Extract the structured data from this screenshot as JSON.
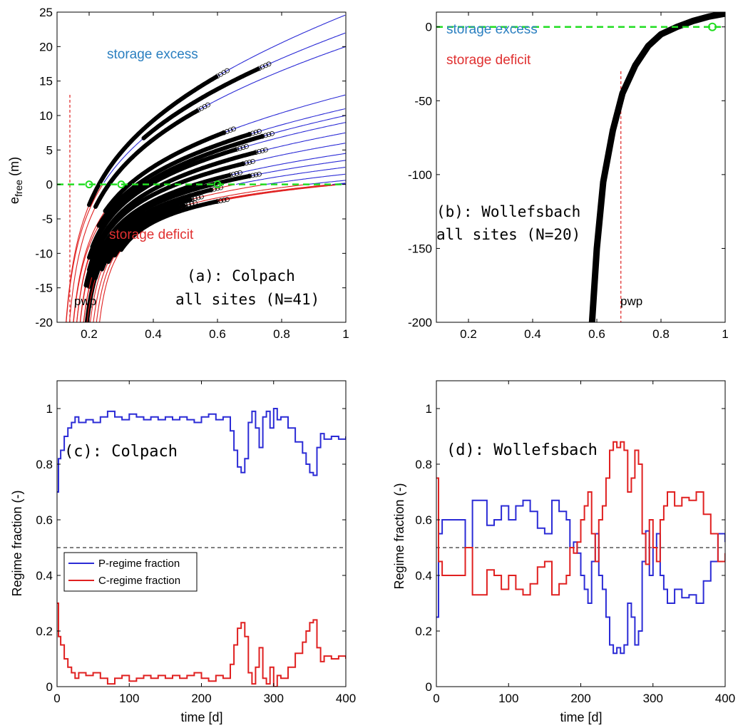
{
  "colors": {
    "blue": "#2b2bd6",
    "red": "#e02020",
    "green": "#22dd22",
    "black": "#000000",
    "label_blue": "#2a7fc0",
    "label_red": "#e03030"
  },
  "chart_data": [
    {
      "id": "a",
      "type": "line",
      "ylabel": "e_free (m)",
      "ylabel_main": "e",
      "ylabel_sub": "free",
      "ylabel_unit": "(m)",
      "xlim": [
        0.1,
        1.0
      ],
      "ylim": [
        -20,
        25
      ],
      "xticks": [
        0.2,
        0.4,
        0.6,
        0.8,
        1.0
      ],
      "xtick_labels": [
        "0.2",
        "0.4",
        "0.6",
        "0.8",
        "1"
      ],
      "yticks": [
        -20,
        -15,
        -10,
        -5,
        0,
        5,
        10,
        15,
        20,
        25
      ],
      "ytick_labels": [
        "-20",
        "-15",
        "-10",
        "-5",
        "0",
        "5",
        "10",
        "15",
        "20",
        "25"
      ],
      "annotations": {
        "storage_excess": "storage excess",
        "storage_deficit": "storage deficit",
        "panel_line1": "(a): Colpach",
        "panel_line2": "all sites (N=41)",
        "pwp": "pwp"
      },
      "pwp_x": 0.14,
      "zero_line_y": 0,
      "curves": [
        {
          "pwp": 0.1,
          "end": 24.6,
          "obs": [
            0.2,
            0.6
          ]
        },
        {
          "pwp": 0.1,
          "end": 22.0,
          "obs": [
            0.37,
            0.73
          ]
        },
        {
          "pwp": 0.11,
          "end": 20.0,
          "obs": [
            0.22,
            0.54
          ]
        },
        {
          "pwp": 0.12,
          "end": 13.0,
          "obs": [
            0.25,
            0.62
          ]
        },
        {
          "pwp": 0.12,
          "end": 11.0,
          "obs": [
            0.23,
            0.7
          ]
        },
        {
          "pwp": 0.13,
          "end": 10.0,
          "obs": [
            0.21,
            0.74
          ]
        },
        {
          "pwp": 0.13,
          "end": 9.0,
          "obs": [
            0.2,
            0.66
          ]
        },
        {
          "pwp": 0.14,
          "end": 7.5,
          "obs": [
            0.2,
            0.72
          ]
        },
        {
          "pwp": 0.14,
          "end": 6.0,
          "obs": [
            0.19,
            0.68
          ]
        },
        {
          "pwp": 0.15,
          "end": 4.5,
          "obs": [
            0.2,
            0.64
          ]
        },
        {
          "pwp": 0.15,
          "end": 3.5,
          "obs": [
            0.21,
            0.7
          ]
        },
        {
          "pwp": 0.16,
          "end": 2.5,
          "obs": [
            0.19,
            0.58
          ]
        },
        {
          "pwp": 0.16,
          "end": 1.5,
          "obs": [
            0.22,
            0.52
          ]
        },
        {
          "pwp": 0.17,
          "end": 0.6,
          "obs": [
            0.24,
            0.5
          ]
        },
        {
          "pwp": 0.18,
          "end": 0.2,
          "obs": [
            0.26,
            0.48
          ]
        },
        {
          "pwp": 0.19,
          "end": 0.1,
          "obs": [
            0.28,
            0.46
          ]
        },
        {
          "pwp": 0.2,
          "end": 0.05,
          "obs": [
            0.3,
            0.6
          ]
        }
      ],
      "green_markers": [
        [
          0.2,
          0.0
        ],
        [
          0.3,
          0.0
        ],
        [
          0.6,
          0.0
        ]
      ]
    },
    {
      "id": "b",
      "type": "line",
      "xlim": [
        0.1,
        1.0
      ],
      "ylim": [
        -200,
        10
      ],
      "xticks": [
        0.2,
        0.4,
        0.6,
        0.8,
        1.0
      ],
      "xtick_labels": [
        "0.2",
        "0.4",
        "0.6",
        "0.8",
        "1"
      ],
      "yticks": [
        -200,
        -150,
        -100,
        -50,
        0
      ],
      "ytick_labels": [
        "-200",
        "-150",
        "-100",
        "-50",
        "0"
      ],
      "annotations": {
        "storage_excess": "storage excess",
        "storage_deficit": "storage deficit",
        "panel_line1": "(b): Wollefsbach",
        "panel_line2": "all sites (N=20)",
        "pwp": "pwp"
      },
      "pwp_x": 0.675,
      "zero_line_y": 0,
      "curve": {
        "x": [
          0.585,
          0.6,
          0.62,
          0.65,
          0.68,
          0.72,
          0.76,
          0.8,
          0.85,
          0.9,
          0.95,
          1.0
        ],
        "y": [
          -200,
          -150,
          -105,
          -70,
          -45,
          -26,
          -13,
          -5,
          0,
          4,
          7,
          9
        ]
      },
      "green_markers": [
        [
          0.96,
          0.0
        ]
      ]
    },
    {
      "id": "c",
      "type": "line",
      "xlabel": "time [d]",
      "ylabel": "Regime fraction (-)",
      "xlim": [
        0,
        400
      ],
      "ylim": [
        0,
        1.1
      ],
      "xticks": [
        0,
        100,
        200,
        300,
        400
      ],
      "xtick_labels": [
        "0",
        "100",
        "200",
        "300",
        "400"
      ],
      "yticks": [
        0,
        0.2,
        0.4,
        0.6,
        0.8,
        1
      ],
      "ytick_labels": [
        "0",
        "0.2",
        "0.4",
        "0.6",
        "0.8",
        "1"
      ],
      "annotations": {
        "panel": "(c): Colpach"
      },
      "legend": [
        "P-regime fraction",
        "C-regime fraction"
      ],
      "reference_line": 0.5,
      "series": [
        {
          "name": "P-regime fraction",
          "x": [
            0,
            2,
            5,
            10,
            15,
            20,
            25,
            30,
            40,
            50,
            60,
            70,
            80,
            90,
            100,
            110,
            120,
            130,
            140,
            150,
            160,
            170,
            180,
            190,
            200,
            210,
            220,
            230,
            240,
            245,
            250,
            255,
            260,
            265,
            270,
            275,
            280,
            285,
            290,
            295,
            300,
            305,
            310,
            320,
            330,
            340,
            345,
            350,
            355,
            360,
            365,
            370,
            380,
            390,
            400
          ],
          "values": [
            0.7,
            0.82,
            0.85,
            0.9,
            0.93,
            0.95,
            0.97,
            0.95,
            0.96,
            0.95,
            0.97,
            0.99,
            0.97,
            0.96,
            0.98,
            0.97,
            0.96,
            0.97,
            0.96,
            0.97,
            0.96,
            0.97,
            0.96,
            0.95,
            0.97,
            0.98,
            0.96,
            0.97,
            0.92,
            0.85,
            0.79,
            0.77,
            0.82,
            0.95,
            0.99,
            0.93,
            0.86,
            0.97,
            0.99,
            0.93,
            1.0,
            0.96,
            0.97,
            0.93,
            0.88,
            0.84,
            0.8,
            0.77,
            0.76,
            0.86,
            0.91,
            0.89,
            0.9,
            0.89,
            0.9
          ]
        },
        {
          "name": "C-regime fraction",
          "x": [
            0,
            2,
            5,
            10,
            15,
            20,
            25,
            30,
            40,
            50,
            60,
            70,
            80,
            90,
            100,
            110,
            120,
            130,
            140,
            150,
            160,
            170,
            180,
            190,
            200,
            210,
            220,
            230,
            240,
            245,
            250,
            255,
            260,
            265,
            270,
            275,
            280,
            285,
            290,
            295,
            300,
            305,
            310,
            320,
            330,
            340,
            345,
            350,
            355,
            360,
            365,
            370,
            380,
            390,
            400
          ],
          "values": [
            0.3,
            0.18,
            0.15,
            0.1,
            0.07,
            0.05,
            0.03,
            0.05,
            0.04,
            0.05,
            0.03,
            0.01,
            0.03,
            0.04,
            0.02,
            0.03,
            0.04,
            0.03,
            0.04,
            0.03,
            0.04,
            0.03,
            0.04,
            0.05,
            0.03,
            0.02,
            0.04,
            0.03,
            0.08,
            0.15,
            0.21,
            0.23,
            0.18,
            0.05,
            0.01,
            0.07,
            0.14,
            0.03,
            0.01,
            0.07,
            0.0,
            0.04,
            0.03,
            0.07,
            0.12,
            0.16,
            0.2,
            0.23,
            0.24,
            0.14,
            0.09,
            0.11,
            0.1,
            0.11,
            0.1
          ]
        }
      ]
    },
    {
      "id": "d",
      "type": "line",
      "xlabel": "time [d]",
      "ylabel": "Regime fraction (-)",
      "xlim": [
        0,
        400
      ],
      "ylim": [
        0,
        1.1
      ],
      "xticks": [
        0,
        100,
        200,
        300,
        400
      ],
      "xtick_labels": [
        "0",
        "100",
        "200",
        "300",
        "400"
      ],
      "yticks": [
        0,
        0.2,
        0.4,
        0.6,
        0.8,
        1
      ],
      "ytick_labels": [
        "0",
        "0.2",
        "0.4",
        "0.6",
        "0.8",
        "1"
      ],
      "annotations": {
        "panel": "(d): Wollefsbach"
      },
      "reference_line": 0.5,
      "series": [
        {
          "name": "P-regime fraction",
          "x": [
            0,
            3,
            8,
            15,
            30,
            40,
            50,
            60,
            70,
            80,
            90,
            100,
            110,
            120,
            130,
            140,
            150,
            160,
            170,
            180,
            185,
            190,
            195,
            200,
            205,
            210,
            215,
            220,
            225,
            230,
            235,
            240,
            245,
            250,
            255,
            260,
            265,
            270,
            275,
            280,
            285,
            290,
            295,
            300,
            305,
            310,
            315,
            320,
            330,
            340,
            350,
            360,
            370,
            380,
            390,
            400
          ],
          "values": [
            0.25,
            0.55,
            0.6,
            0.6,
            0.6,
            0.5,
            0.67,
            0.67,
            0.58,
            0.6,
            0.65,
            0.6,
            0.65,
            0.67,
            0.63,
            0.57,
            0.55,
            0.67,
            0.63,
            0.6,
            0.5,
            0.52,
            0.48,
            0.4,
            0.35,
            0.3,
            0.45,
            0.55,
            0.4,
            0.35,
            0.25,
            0.15,
            0.12,
            0.14,
            0.12,
            0.15,
            0.3,
            0.25,
            0.15,
            0.2,
            0.45,
            0.56,
            0.4,
            0.5,
            0.55,
            0.4,
            0.35,
            0.3,
            0.35,
            0.32,
            0.33,
            0.3,
            0.38,
            0.45,
            0.55,
            0.52
          ]
        },
        {
          "name": "C-regime fraction",
          "x": [
            0,
            3,
            8,
            15,
            30,
            40,
            50,
            60,
            70,
            80,
            90,
            100,
            110,
            120,
            130,
            140,
            150,
            160,
            170,
            180,
            185,
            190,
            195,
            200,
            205,
            210,
            215,
            220,
            225,
            230,
            235,
            240,
            245,
            250,
            255,
            260,
            265,
            270,
            275,
            280,
            285,
            290,
            295,
            300,
            305,
            310,
            315,
            320,
            330,
            340,
            350,
            360,
            370,
            380,
            390,
            400
          ],
          "values": [
            0.75,
            0.45,
            0.4,
            0.4,
            0.4,
            0.5,
            0.33,
            0.33,
            0.42,
            0.4,
            0.35,
            0.4,
            0.35,
            0.33,
            0.37,
            0.43,
            0.45,
            0.33,
            0.37,
            0.4,
            0.5,
            0.48,
            0.52,
            0.6,
            0.65,
            0.7,
            0.55,
            0.45,
            0.6,
            0.65,
            0.75,
            0.85,
            0.88,
            0.86,
            0.88,
            0.85,
            0.7,
            0.75,
            0.85,
            0.8,
            0.55,
            0.44,
            0.6,
            0.5,
            0.45,
            0.6,
            0.65,
            0.7,
            0.65,
            0.68,
            0.67,
            0.7,
            0.62,
            0.55,
            0.45,
            0.48
          ]
        }
      ]
    }
  ]
}
